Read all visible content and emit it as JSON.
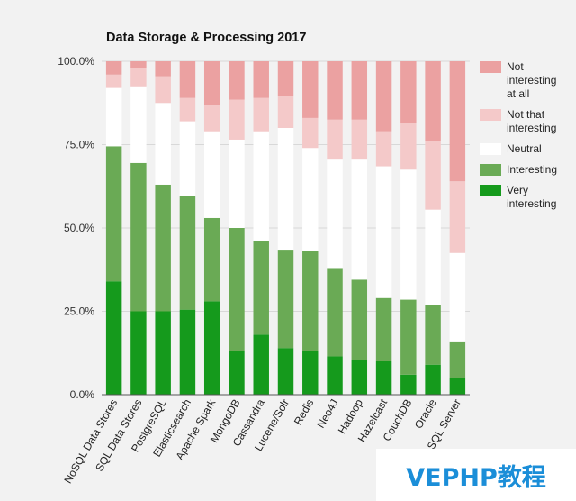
{
  "watermark": "VEPHP教程",
  "chart_data": {
    "type": "bar",
    "stacked": true,
    "title": "Data Storage & Processing 2017",
    "xlabel": "",
    "ylabel": "",
    "ylim": [
      0,
      100
    ],
    "yticks": [
      0,
      25,
      50,
      75,
      100
    ],
    "ytick_labels": [
      "0.0%",
      "25.0%",
      "50.0%",
      "75.0%",
      "100.0%"
    ],
    "legend_position": "right",
    "categories": [
      "NoSQL Data Stores",
      "SQL Data Stores",
      "PostgreSQL",
      "Elasticsearch",
      "Apache Spark",
      "MongoDB",
      "Cassandra",
      "Lucene/Solr",
      "Redis",
      "Neo4J",
      "Hadoop",
      "Hazelcast",
      "CouchDB",
      "Oracle",
      "SQL Server"
    ],
    "series": [
      {
        "name": "Very interesting",
        "legend_lines": [
          "Very",
          "interesting"
        ],
        "color": "#159a1c",
        "values": [
          34,
          25,
          25,
          25.5,
          28,
          13,
          18,
          14,
          13,
          11.5,
          10.5,
          10,
          6,
          9,
          5
        ]
      },
      {
        "name": "Interesting",
        "legend_lines": [
          "Interesting"
        ],
        "color": "#6aaa55",
        "values": [
          40.5,
          44.5,
          38,
          34,
          25,
          37,
          28,
          29.5,
          30,
          26.5,
          24,
          19,
          22.5,
          18,
          11
        ]
      },
      {
        "name": "Neutral",
        "legend_lines": [
          "Neutral"
        ],
        "color": "#ffffff",
        "values": [
          17.5,
          23,
          24.5,
          22.5,
          26,
          26.5,
          33,
          36.5,
          31,
          32.5,
          36,
          39.5,
          39,
          28.5,
          26.5
        ]
      },
      {
        "name": "Not that interesting",
        "legend_lines": [
          "Not that",
          "interesting"
        ],
        "color": "#f4c9c9",
        "values": [
          4,
          5.5,
          8,
          7,
          8,
          12,
          10,
          9.5,
          9,
          12,
          12,
          10.5,
          14,
          20.5,
          21.5
        ]
      },
      {
        "name": "Not interesting at all",
        "legend_lines": [
          "Not",
          "interesting",
          "at all"
        ],
        "color": "#eba1a1",
        "values": [
          4,
          2,
          4.5,
          11,
          13,
          11.5,
          11,
          10.5,
          17,
          17.5,
          17.5,
          21,
          18.5,
          24,
          36
        ]
      }
    ]
  }
}
